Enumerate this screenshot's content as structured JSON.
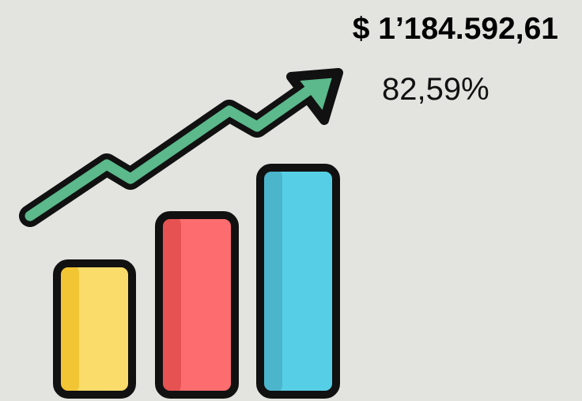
{
  "amount": "$ 1’184.592,61",
  "percentage": "82,59%"
}
